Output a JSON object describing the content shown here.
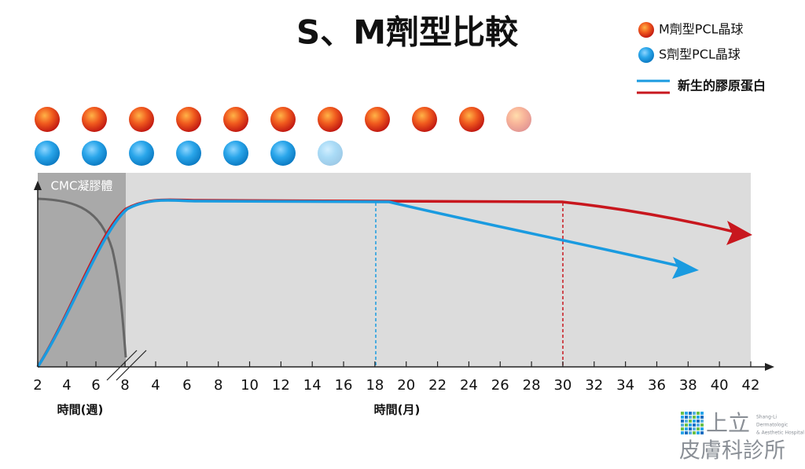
{
  "title": "S、M劑型比較",
  "legend": [
    {
      "label": "M劑型PCL晶球",
      "color": "#d9261c"
    },
    {
      "label": "S劑型PCL晶球",
      "color": "#1a9be0"
    },
    {
      "label": "新生的膠原蛋白"
    }
  ],
  "region_label": "CMC凝膠體",
  "x_axis": {
    "week_ticks": [
      2,
      4,
      6,
      8
    ],
    "month_ticks": [
      4,
      6,
      8,
      10,
      12,
      14,
      16,
      18,
      20,
      22,
      24,
      26,
      28,
      30,
      32,
      34,
      36,
      38,
      40,
      42
    ],
    "week_label": "時間(週)",
    "month_label": "時間(月)"
  },
  "logo": {
    "name_top": "上立",
    "name_bottom": "皮膚科診所",
    "english": [
      "Shang-Li",
      "Dermatologic",
      "& Aesthetic Hospital"
    ]
  }
}
